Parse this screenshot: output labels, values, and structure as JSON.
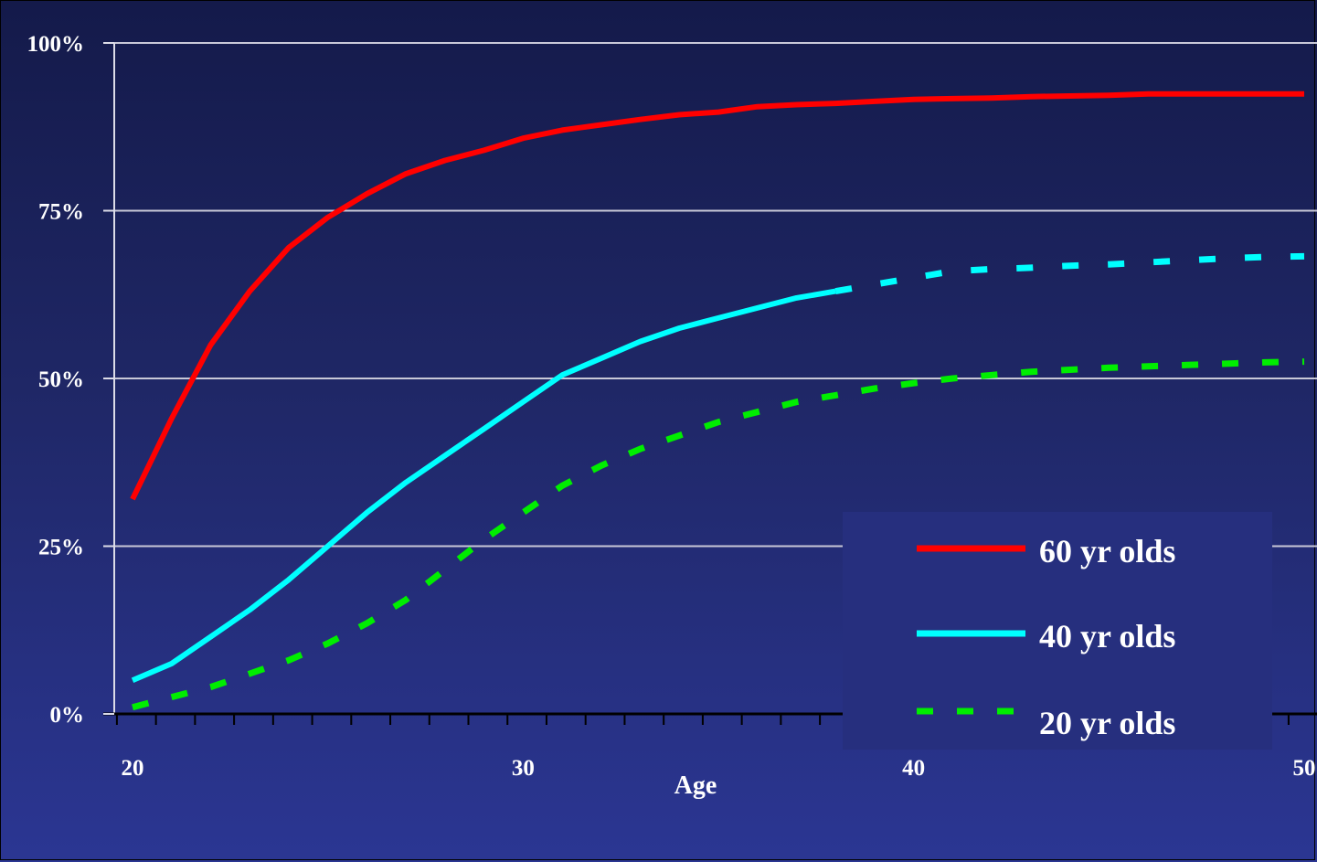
{
  "chart_data": {
    "type": "line",
    "title": "",
    "xlabel": "Age",
    "ylabel": "",
    "xlim": [
      20,
      50
    ],
    "ylim": [
      0,
      100
    ],
    "x_ticks": [
      20,
      30,
      40,
      50
    ],
    "x_tick_labels": [
      "20",
      "30",
      "40",
      "50"
    ],
    "y_ticks": [
      0,
      25,
      50,
      75,
      100
    ],
    "y_tick_labels": [
      "0%",
      "25%",
      "50%",
      "75%",
      "100%"
    ],
    "grid": "horizontal",
    "legend_position": "bottom-right",
    "series": [
      {
        "name": "60 yr olds",
        "color": "#ff0000",
        "style": "solid",
        "x": [
          20,
          21,
          22,
          23,
          24,
          25,
          26,
          27,
          28,
          29,
          30,
          31,
          32,
          33,
          34,
          35,
          36,
          37,
          38,
          39,
          40,
          41,
          42,
          43,
          44,
          45,
          46,
          47,
          48,
          49,
          50
        ],
        "y": [
          32,
          44,
          55,
          63,
          69.5,
          74,
          77.5,
          80.5,
          82.5,
          84,
          85.8,
          87,
          87.8,
          88.6,
          89.3,
          89.7,
          90.5,
          90.8,
          91,
          91.3,
          91.6,
          91.7,
          91.8,
          92,
          92.1,
          92.2,
          92.4,
          92.4,
          92.4,
          92.4,
          92.4
        ]
      },
      {
        "name": "40 yr olds",
        "color": "#00ffff",
        "style": "solid-then-dashed",
        "projection_start": 38,
        "x": [
          20,
          21,
          22,
          23,
          24,
          25,
          26,
          27,
          28,
          29,
          30,
          31,
          32,
          33,
          34,
          35,
          36,
          37,
          38,
          39,
          40,
          41,
          42,
          43,
          44,
          45,
          46,
          47,
          48,
          49,
          50
        ],
        "y": [
          5,
          7.5,
          11.5,
          15.5,
          20,
          25,
          30,
          34.5,
          38.5,
          42.5,
          46.5,
          50.5,
          53,
          55.5,
          57.5,
          59,
          60.5,
          62,
          63,
          64,
          65,
          66,
          66.3,
          66.5,
          66.8,
          67,
          67.3,
          67.6,
          67.9,
          68.1,
          68.2
        ]
      },
      {
        "name": "20 yr olds",
        "color": "#00ee00",
        "style": "dashed",
        "x": [
          20,
          21,
          22,
          23,
          24,
          25,
          26,
          27,
          28,
          29,
          30,
          31,
          32,
          33,
          34,
          35,
          36,
          37,
          38,
          39,
          40,
          41,
          42,
          43,
          44,
          45,
          46,
          47,
          48,
          49,
          50
        ],
        "y": [
          1,
          2.5,
          4,
          6,
          8,
          10.5,
          13.5,
          17,
          21.5,
          26,
          30,
          34,
          37,
          39.5,
          41.5,
          43.5,
          45,
          46.5,
          47.5,
          48.5,
          49.3,
          50,
          50.5,
          51,
          51.3,
          51.6,
          51.8,
          52,
          52.2,
          52.4,
          52.5
        ]
      }
    ]
  }
}
